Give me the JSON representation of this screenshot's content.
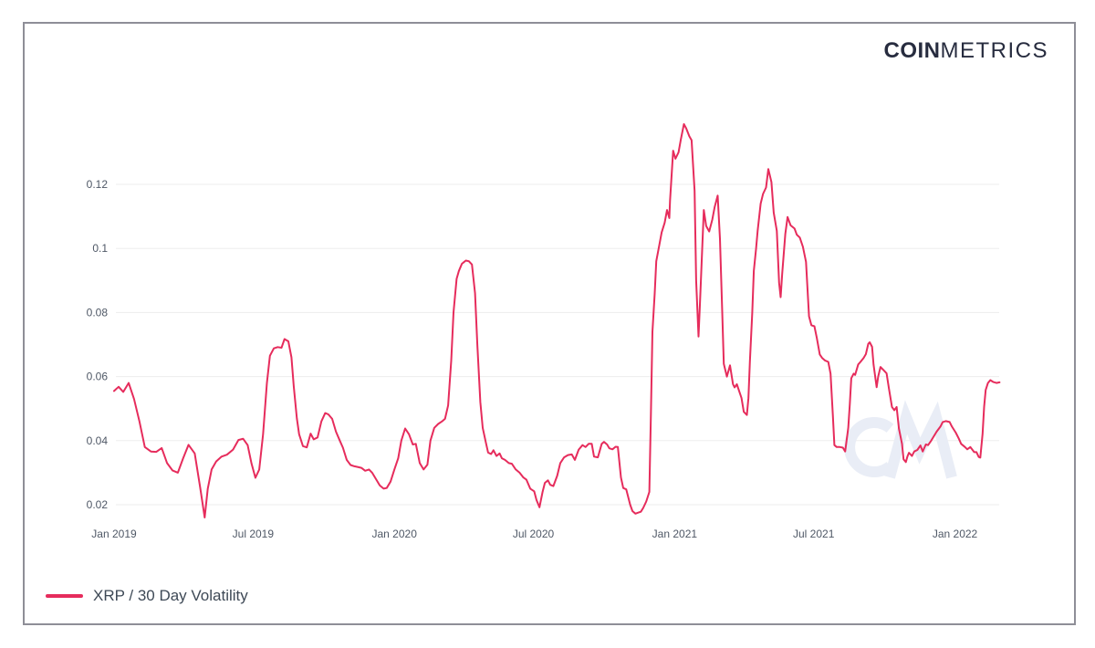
{
  "brand": {
    "logo_bold": "COIN",
    "logo_light": "METRICS"
  },
  "legend": {
    "label": "XRP / 30 Day Volatility",
    "swatch_color": "#e62c5c"
  },
  "watermark": "CM",
  "colors": {
    "line": "#e62c5c",
    "grid": "#ededed",
    "tick_text": "#4f5866",
    "card_border": "#8e8e97",
    "watermark": "#e9edf6"
  },
  "chart_data": {
    "type": "line",
    "series_name": "XRP / 30 Day Volatility",
    "line_color": "#e62c5c",
    "xlabel": "",
    "ylabel": "",
    "grid": true,
    "legend_position": "bottom-left",
    "x_unit": "days since 2019-01-01",
    "x_domain": [
      0,
      1153
    ],
    "ylim": [
      0.012,
      0.146
    ],
    "y_ticks": [
      {
        "value": 0.02,
        "label": "0.02"
      },
      {
        "value": 0.04,
        "label": "0.04"
      },
      {
        "value": 0.06,
        "label": "0.06"
      },
      {
        "value": 0.08,
        "label": "0.08"
      },
      {
        "value": 0.1,
        "label": "0.1"
      },
      {
        "value": 0.12,
        "label": "0.12"
      }
    ],
    "x_ticks": [
      {
        "t": 0,
        "label": "Jan 2019"
      },
      {
        "t": 181,
        "label": "Jul 2019"
      },
      {
        "t": 365,
        "label": "Jan 2020"
      },
      {
        "t": 546,
        "label": "Jul 2020"
      },
      {
        "t": 730,
        "label": "Jan 2021"
      },
      {
        "t": 911,
        "label": "Jul 2021"
      },
      {
        "t": 1095,
        "label": "Jan 2022"
      }
    ],
    "points": [
      [
        0,
        0.0555
      ],
      [
        6,
        0.0568
      ],
      [
        12,
        0.0552
      ],
      [
        19,
        0.058
      ],
      [
        26,
        0.053
      ],
      [
        33,
        0.046
      ],
      [
        40,
        0.038
      ],
      [
        48,
        0.0366
      ],
      [
        55,
        0.0365
      ],
      [
        62,
        0.0377
      ],
      [
        69,
        0.033
      ],
      [
        76,
        0.0307
      ],
      [
        83,
        0.03
      ],
      [
        90,
        0.0345
      ],
      [
        97,
        0.0387
      ],
      [
        105,
        0.036
      ],
      [
        112,
        0.0255
      ],
      [
        118,
        0.016
      ],
      [
        122,
        0.025
      ],
      [
        127,
        0.031
      ],
      [
        133,
        0.0335
      ],
      [
        140,
        0.035
      ],
      [
        147,
        0.0356
      ],
      [
        155,
        0.0372
      ],
      [
        162,
        0.0402
      ],
      [
        168,
        0.0406
      ],
      [
        174,
        0.0386
      ],
      [
        179,
        0.0329
      ],
      [
        184,
        0.0284
      ],
      [
        189,
        0.031
      ],
      [
        194,
        0.042
      ],
      [
        199,
        0.058
      ],
      [
        203,
        0.0665
      ],
      [
        208,
        0.0688
      ],
      [
        213,
        0.0692
      ],
      [
        218,
        0.069
      ],
      [
        222,
        0.0717
      ],
      [
        227,
        0.071
      ],
      [
        231,
        0.066
      ],
      [
        234,
        0.057
      ],
      [
        238,
        0.047
      ],
      [
        241,
        0.042
      ],
      [
        246,
        0.0383
      ],
      [
        251,
        0.0379
      ],
      [
        256,
        0.0422
      ],
      [
        260,
        0.0404
      ],
      [
        265,
        0.041
      ],
      [
        270,
        0.046
      ],
      [
        275,
        0.0486
      ],
      [
        279,
        0.0482
      ],
      [
        284,
        0.0468
      ],
      [
        289,
        0.0428
      ],
      [
        294,
        0.04
      ],
      [
        298,
        0.0378
      ],
      [
        303,
        0.034
      ],
      [
        308,
        0.0324
      ],
      [
        313,
        0.032
      ],
      [
        317,
        0.0318
      ],
      [
        322,
        0.0315
      ],
      [
        327,
        0.0306
      ],
      [
        332,
        0.031
      ],
      [
        336,
        0.03
      ],
      [
        341,
        0.028
      ],
      [
        346,
        0.026
      ],
      [
        351,
        0.025
      ],
      [
        355,
        0.0252
      ],
      [
        360,
        0.0272
      ],
      [
        365,
        0.031
      ],
      [
        370,
        0.0345
      ],
      [
        374,
        0.04
      ],
      [
        379,
        0.0438
      ],
      [
        384,
        0.042
      ],
      [
        389,
        0.0388
      ],
      [
        393,
        0.039
      ],
      [
        398,
        0.033
      ],
      [
        403,
        0.031
      ],
      [
        408,
        0.0325
      ],
      [
        412,
        0.04
      ],
      [
        417,
        0.044
      ],
      [
        422,
        0.0452
      ],
      [
        427,
        0.046
      ],
      [
        431,
        0.0468
      ],
      [
        435,
        0.051
      ],
      [
        439,
        0.065
      ],
      [
        442,
        0.08
      ],
      [
        446,
        0.0905
      ],
      [
        449,
        0.093
      ],
      [
        453,
        0.0952
      ],
      [
        458,
        0.0962
      ],
      [
        462,
        0.096
      ],
      [
        466,
        0.095
      ],
      [
        470,
        0.086
      ],
      [
        473,
        0.07
      ],
      [
        477,
        0.052
      ],
      [
        480,
        0.044
      ],
      [
        484,
        0.0396
      ],
      [
        487,
        0.0363
      ],
      [
        491,
        0.0358
      ],
      [
        494,
        0.037
      ],
      [
        498,
        0.0352
      ],
      [
        502,
        0.036
      ],
      [
        505,
        0.0345
      ],
      [
        509,
        0.034
      ],
      [
        514,
        0.033
      ],
      [
        518,
        0.0328
      ],
      [
        523,
        0.031
      ],
      [
        528,
        0.03
      ],
      [
        533,
        0.0285
      ],
      [
        537,
        0.0278
      ],
      [
        542,
        0.025
      ],
      [
        547,
        0.0242
      ],
      [
        550,
        0.0215
      ],
      [
        554,
        0.0192
      ],
      [
        558,
        0.024
      ],
      [
        561,
        0.0268
      ],
      [
        565,
        0.0276
      ],
      [
        568,
        0.0262
      ],
      [
        572,
        0.0258
      ],
      [
        577,
        0.029
      ],
      [
        581,
        0.033
      ],
      [
        586,
        0.0348
      ],
      [
        591,
        0.0355
      ],
      [
        596,
        0.0357
      ],
      [
        600,
        0.034
      ],
      [
        605,
        0.0372
      ],
      [
        610,
        0.0386
      ],
      [
        614,
        0.038
      ],
      [
        618,
        0.039
      ],
      [
        622,
        0.039
      ],
      [
        625,
        0.035
      ],
      [
        630,
        0.0348
      ],
      [
        635,
        0.039
      ],
      [
        638,
        0.0396
      ],
      [
        642,
        0.0388
      ],
      [
        645,
        0.0376
      ],
      [
        649,
        0.0373
      ],
      [
        653,
        0.0381
      ],
      [
        656,
        0.038
      ],
      [
        660,
        0.0285
      ],
      [
        663,
        0.0252
      ],
      [
        667,
        0.0248
      ],
      [
        672,
        0.02
      ],
      [
        675,
        0.018
      ],
      [
        679,
        0.0172
      ],
      [
        682,
        0.0175
      ],
      [
        686,
        0.0178
      ],
      [
        689,
        0.019
      ],
      [
        693,
        0.021
      ],
      [
        697,
        0.024
      ],
      [
        699,
        0.048
      ],
      [
        701,
        0.074
      ],
      [
        704,
        0.086
      ],
      [
        706,
        0.096
      ],
      [
        710,
        0.101
      ],
      [
        713,
        0.105
      ],
      [
        717,
        0.108
      ],
      [
        720,
        0.112
      ],
      [
        723,
        0.1095
      ],
      [
        724,
        0.115
      ],
      [
        728,
        0.1305
      ],
      [
        731,
        0.128
      ],
      [
        735,
        0.13
      ],
      [
        738,
        0.134
      ],
      [
        742,
        0.1388
      ],
      [
        745,
        0.1375
      ],
      [
        749,
        0.135
      ],
      [
        752,
        0.1338
      ],
      [
        756,
        0.118
      ],
      [
        758,
        0.09
      ],
      [
        761,
        0.0725
      ],
      [
        763,
        0.083
      ],
      [
        766,
        0.101
      ],
      [
        768,
        0.112
      ],
      [
        771,
        0.107
      ],
      [
        775,
        0.1053
      ],
      [
        779,
        0.109
      ],
      [
        782,
        0.1128
      ],
      [
        786,
        0.1165
      ],
      [
        789,
        0.103
      ],
      [
        792,
        0.08
      ],
      [
        794,
        0.064
      ],
      [
        798,
        0.06
      ],
      [
        802,
        0.0635
      ],
      [
        806,
        0.0576
      ],
      [
        808,
        0.0566
      ],
      [
        811,
        0.0576
      ],
      [
        817,
        0.0533
      ],
      [
        820,
        0.049
      ],
      [
        824,
        0.048
      ],
      [
        826,
        0.0533
      ],
      [
        828,
        0.0647
      ],
      [
        831,
        0.08
      ],
      [
        833,
        0.093
      ],
      [
        836,
        0.1
      ],
      [
        838,
        0.1055
      ],
      [
        842,
        0.114
      ],
      [
        845,
        0.117
      ],
      [
        849,
        0.119
      ],
      [
        852,
        0.1248
      ],
      [
        856,
        0.1207
      ],
      [
        859,
        0.1112
      ],
      [
        863,
        0.1055
      ],
      [
        866,
        0.0893
      ],
      [
        868,
        0.0848
      ],
      [
        870,
        0.0921
      ],
      [
        874,
        0.1045
      ],
      [
        877,
        0.1098
      ],
      [
        881,
        0.1072
      ],
      [
        886,
        0.1062
      ],
      [
        889,
        0.1043
      ],
      [
        893,
        0.1034
      ],
      [
        897,
        0.1005
      ],
      [
        901,
        0.0958
      ],
      [
        905,
        0.0788
      ],
      [
        908,
        0.076
      ],
      [
        912,
        0.0757
      ],
      [
        915,
        0.0721
      ],
      [
        919,
        0.0669
      ],
      [
        922,
        0.0658
      ],
      [
        926,
        0.065
      ],
      [
        930,
        0.0646
      ],
      [
        933,
        0.0609
      ],
      [
        936,
        0.048
      ],
      [
        938,
        0.0386
      ],
      [
        941,
        0.038
      ],
      [
        945,
        0.038
      ],
      [
        949,
        0.0378
      ],
      [
        952,
        0.0366
      ],
      [
        956,
        0.044
      ],
      [
        958,
        0.0514
      ],
      [
        960,
        0.0595
      ],
      [
        963,
        0.0609
      ],
      [
        965,
        0.0605
      ],
      [
        969,
        0.0638
      ],
      [
        972,
        0.0646
      ],
      [
        976,
        0.0658
      ],
      [
        979,
        0.067
      ],
      [
        982,
        0.0702
      ],
      [
        984,
        0.0707
      ],
      [
        987,
        0.0693
      ],
      [
        989,
        0.0638
      ],
      [
        993,
        0.0567
      ],
      [
        995,
        0.06
      ],
      [
        998,
        0.063
      ],
      [
        1002,
        0.062
      ],
      [
        1006,
        0.061
      ],
      [
        1009,
        0.0562
      ],
      [
        1013,
        0.0505
      ],
      [
        1016,
        0.0495
      ],
      [
        1019,
        0.0505
      ],
      [
        1022,
        0.0438
      ],
      [
        1026,
        0.039
      ],
      [
        1028,
        0.0342
      ],
      [
        1031,
        0.0333
      ],
      [
        1033,
        0.035
      ],
      [
        1035,
        0.0362
      ],
      [
        1039,
        0.0352
      ],
      [
        1042,
        0.0366
      ],
      [
        1046,
        0.0371
      ],
      [
        1050,
        0.0385
      ],
      [
        1053,
        0.0366
      ],
      [
        1057,
        0.0388
      ],
      [
        1060,
        0.0386
      ],
      [
        1064,
        0.04
      ],
      [
        1067,
        0.0412
      ],
      [
        1071,
        0.0428
      ],
      [
        1076,
        0.0444
      ],
      [
        1079,
        0.0458
      ],
      [
        1083,
        0.0461
      ],
      [
        1088,
        0.0458
      ],
      [
        1091,
        0.0444
      ],
      [
        1096,
        0.0425
      ],
      [
        1100,
        0.0406
      ],
      [
        1103,
        0.039
      ],
      [
        1108,
        0.038
      ],
      [
        1111,
        0.0373
      ],
      [
        1115,
        0.038
      ],
      [
        1120,
        0.0364
      ],
      [
        1123,
        0.0364
      ],
      [
        1126,
        0.0349
      ],
      [
        1128,
        0.0347
      ],
      [
        1131,
        0.0421
      ],
      [
        1133,
        0.0506
      ],
      [
        1135,
        0.0558
      ],
      [
        1138,
        0.058
      ],
      [
        1141,
        0.0589
      ],
      [
        1145,
        0.0583
      ],
      [
        1149,
        0.058
      ],
      [
        1153,
        0.0582
      ]
    ]
  }
}
